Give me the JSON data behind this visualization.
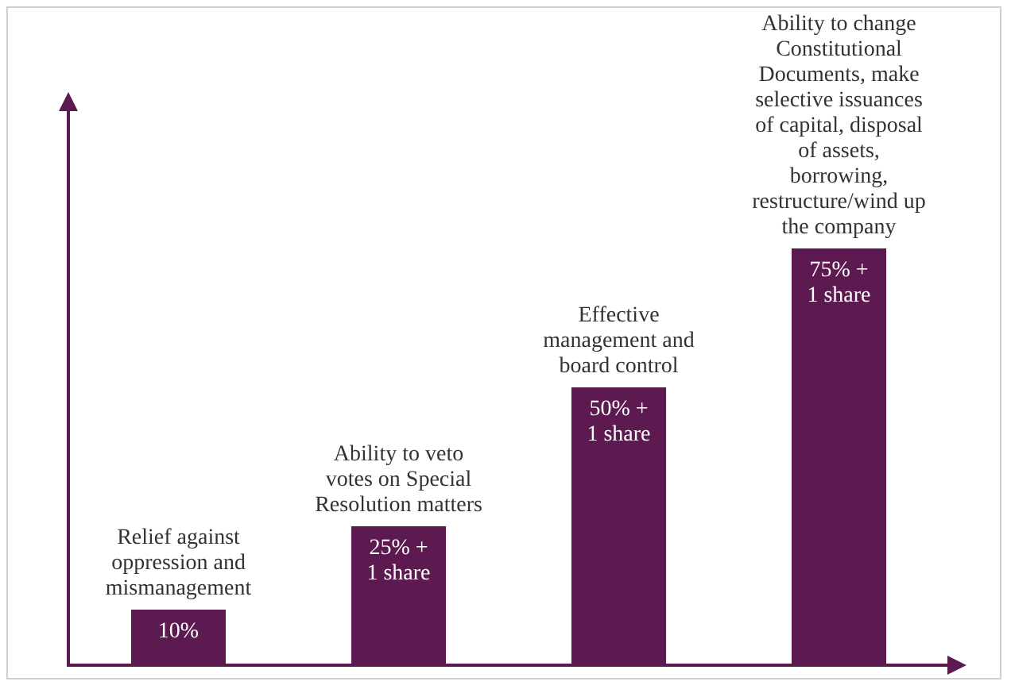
{
  "chart_data": {
    "type": "bar",
    "categories": [
      null,
      null,
      null,
      null
    ],
    "annotations": [
      "Relief against oppression and mismanagement",
      "Ability to veto votes on Special Resolution matters",
      "Effective management and board control",
      "Ability to change Constitutional Documents, make selective issuances of capital, disposal of assets, borrowing, restructure/wind up the company"
    ],
    "values": [
      10,
      25,
      50,
      75
    ],
    "value_labels": [
      "10%",
      "25% + 1 share",
      "50% + 1 share",
      "75% + 1 share"
    ],
    "color": "#5c1a50",
    "grid": false,
    "legend": false,
    "tick_labels": false
  }
}
